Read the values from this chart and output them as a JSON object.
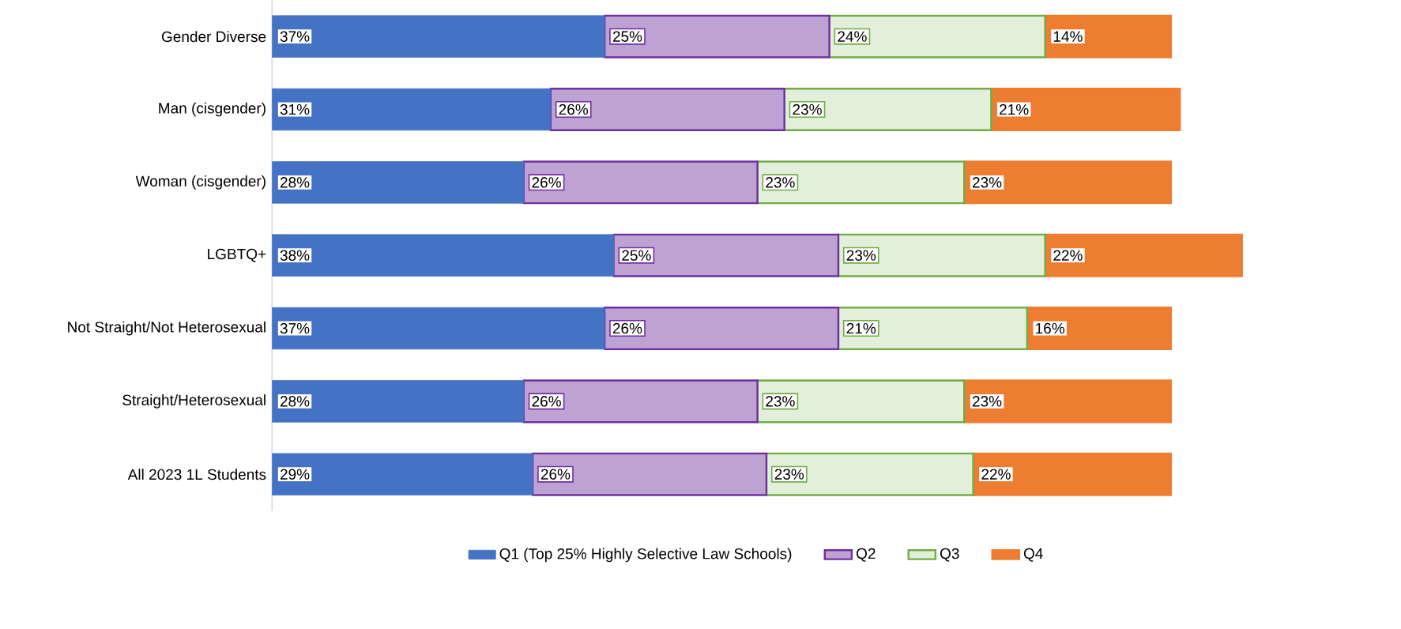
{
  "chart_data": {
    "type": "bar",
    "orientation": "horizontal",
    "stacked": true,
    "legend": "bottom",
    "categories": [
      "Gender Diverse",
      "Man (cisgender)",
      "Woman (cisgender)",
      "LGBTQ+",
      "Not Straight/Not Heterosexual",
      "Straight/Heterosexual",
      "All 2023 1L Students"
    ],
    "series": [
      {
        "name": "Q1 (Top 25% Highly Selective Law Schools)",
        "color": "#4472c4",
        "values": [
          37,
          31,
          28,
          38,
          37,
          28,
          29
        ],
        "value_labels": [
          "37%",
          "31%",
          "28%",
          "38%",
          "37%",
          "28%",
          "29%"
        ]
      },
      {
        "name": "Q2",
        "color": "#7030a0",
        "values": [
          25,
          26,
          26,
          25,
          26,
          26,
          26
        ],
        "value_labels": [
          "25%",
          "26%",
          "26%",
          "25%",
          "26%",
          "26%",
          "26%"
        ]
      },
      {
        "name": "Q3",
        "color": "#70ad47",
        "values": [
          24,
          23,
          23,
          23,
          21,
          23,
          23
        ],
        "value_labels": [
          "24%",
          "23%",
          "23%",
          "23%",
          "21%",
          "23%",
          "23%"
        ]
      },
      {
        "name": "Q4",
        "color": "#ed7d31",
        "values": [
          14,
          21,
          23,
          22,
          16,
          23,
          22
        ],
        "value_labels": [
          "14%",
          "21%",
          "23%",
          "22%",
          "16%",
          "23%",
          "22%"
        ]
      }
    ]
  }
}
